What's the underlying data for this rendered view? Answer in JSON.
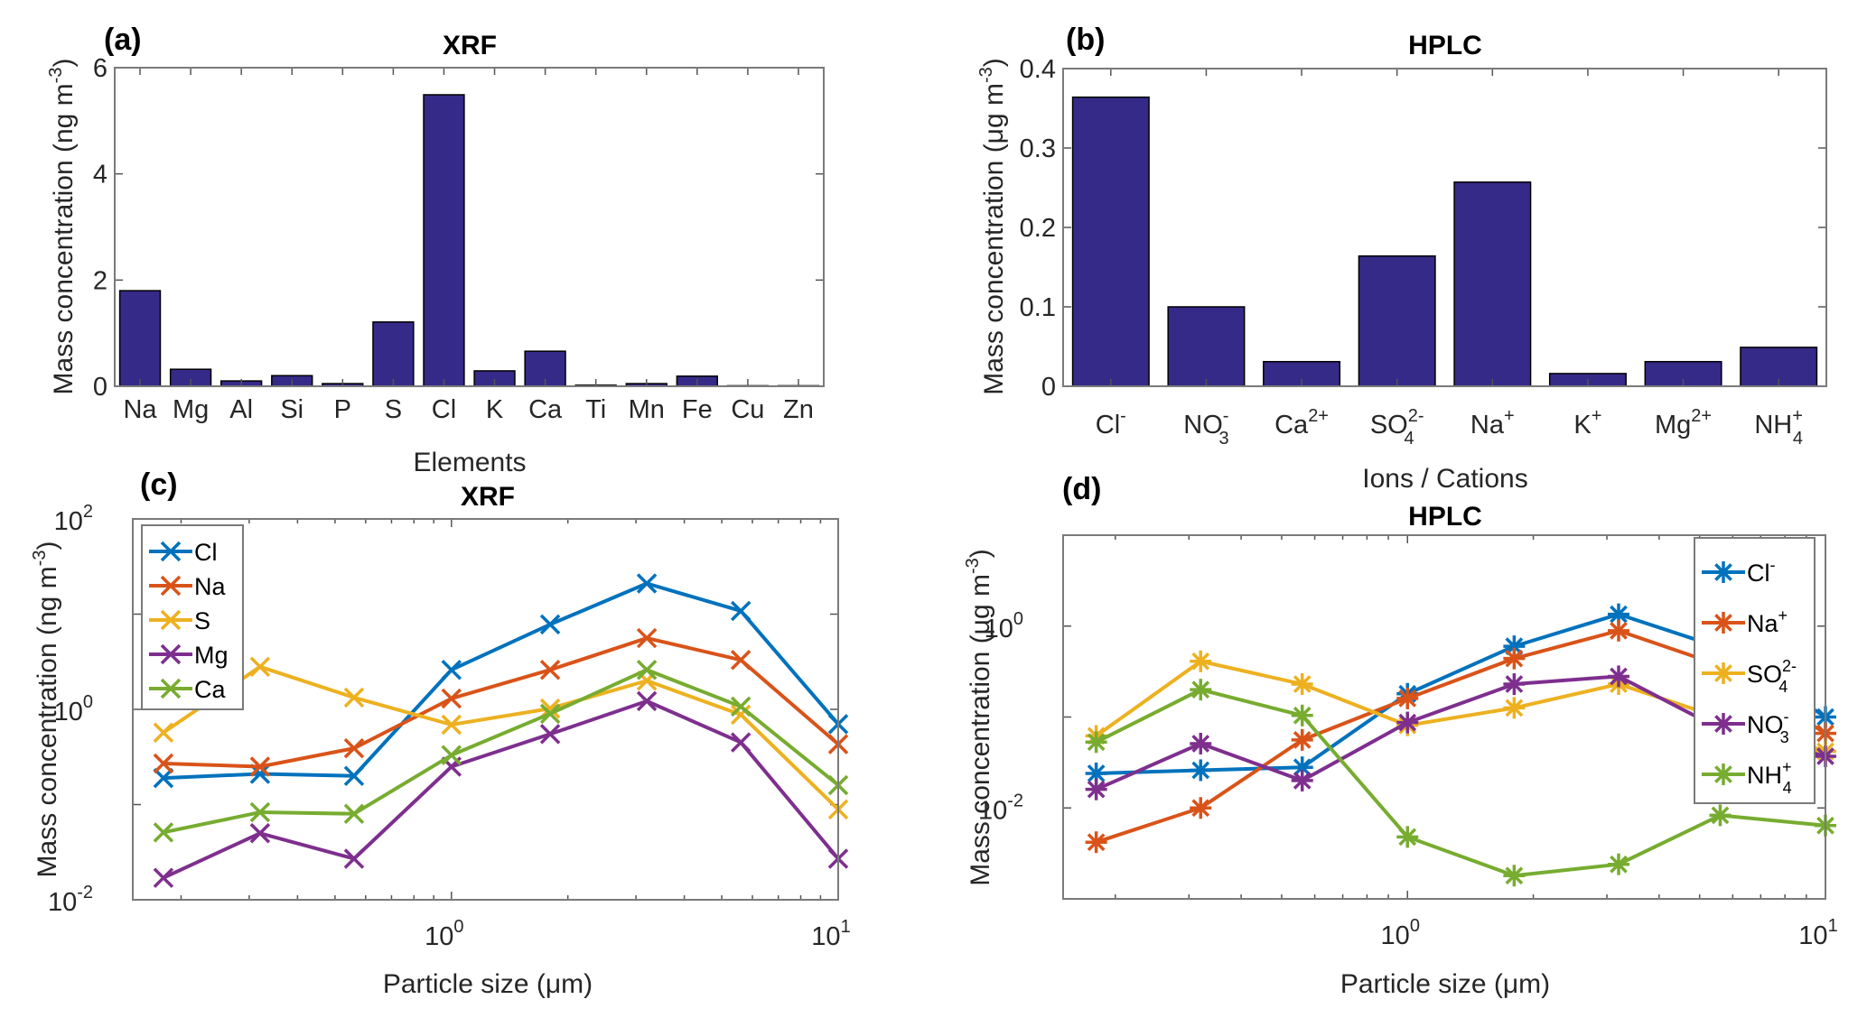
{
  "figure": {
    "background": "#ffffff"
  },
  "chart_data": [
    {
      "id": "a",
      "panel_label": "(a)",
      "type": "bar",
      "title": "XRF",
      "xlabel": "Elements",
      "ylabel": "Mass concentration (ng m",
      "ylabel_sup": "-3",
      "ylabel_tail": ")",
      "categories": [
        "Na",
        "Mg",
        "Al",
        "Si",
        "P",
        "S",
        "Cl",
        "K",
        "Ca",
        "Ti",
        "Mn",
        "Fe",
        "Cu",
        "Zn"
      ],
      "category_labels": [
        {
          "base": "Na"
        },
        {
          "base": "Mg"
        },
        {
          "base": "Al"
        },
        {
          "base": "Si"
        },
        {
          "base": "P"
        },
        {
          "base": "S"
        },
        {
          "base": "Cl"
        },
        {
          "base": "K"
        },
        {
          "base": "Ca"
        },
        {
          "base": "Ti"
        },
        {
          "base": "Mn"
        },
        {
          "base": "Fe"
        },
        {
          "base": "Cu"
        },
        {
          "base": "Zn"
        }
      ],
      "values": [
        1.8,
        0.32,
        0.1,
        0.2,
        0.05,
        1.21,
        5.49,
        0.29,
        0.66,
        0.02,
        0.05,
        0.19,
        0.01,
        0.01
      ],
      "ylim": [
        0,
        6
      ],
      "yticks": [
        0,
        2,
        4,
        6
      ],
      "ytick_labels": [
        "0",
        "2",
        "4",
        "6"
      ],
      "yscale": "linear",
      "grid": false,
      "bar_color": "#352a87"
    },
    {
      "id": "b",
      "panel_label": "(b)",
      "type": "bar",
      "title": "HPLC",
      "xlabel": "Ions / Cations",
      "ylabel": "Mass concentration (μg m",
      "ylabel_sup": "-3",
      "ylabel_tail": ")",
      "categories": [
        "Cl-",
        "NO3-",
        "Ca2+",
        "SO42-",
        "Na+",
        "K+",
        "Mg2+",
        "NH4+"
      ],
      "category_labels": [
        {
          "base": "Cl",
          "sup": "-"
        },
        {
          "base": "NO",
          "sup": "-",
          "sub": "3"
        },
        {
          "base": "Ca",
          "sup": "2+"
        },
        {
          "base": "SO",
          "sup": "2-",
          "sub": "4"
        },
        {
          "base": "Na",
          "sup": "+"
        },
        {
          "base": "K",
          "sup": "+"
        },
        {
          "base": "Mg",
          "sup": "2+"
        },
        {
          "base": "NH",
          "sup": "+",
          "sub": "4"
        }
      ],
      "values": [
        0.364,
        0.1,
        0.031,
        0.164,
        0.257,
        0.016,
        0.031,
        0.049
      ],
      "ylim": [
        0,
        0.4
      ],
      "yticks": [
        0,
        0.1,
        0.2,
        0.3,
        0.4
      ],
      "ytick_labels": [
        "0",
        "0.1",
        "0.2",
        "0.3",
        "0.4"
      ],
      "yscale": "linear",
      "grid": false,
      "bar_color": "#352a87"
    },
    {
      "id": "c",
      "panel_label": "(c)",
      "type": "line",
      "title": "XRF",
      "xlabel": "Particle size (μm)",
      "ylabel": "Mass concentration (ng m",
      "ylabel_sup": "-3",
      "ylabel_tail": ")",
      "xscale": "log",
      "yscale": "log",
      "xlim": [
        0.15,
        10
      ],
      "ylim": [
        0.01,
        100
      ],
      "xticks": [
        1,
        10
      ],
      "xtick_labels": [
        {
          "base": "10",
          "sup": "0"
        },
        {
          "base": "10",
          "sup": "1"
        }
      ],
      "yticks": [
        0.01,
        1,
        100
      ],
      "ytick_labels": [
        {
          "base": "10",
          "sup": "-2"
        },
        {
          "base": "10",
          "sup": "0"
        },
        {
          "base": "10",
          "sup": "2"
        }
      ],
      "marker": "x",
      "legend_position": "top-left",
      "grid": false,
      "x": [
        0.18,
        0.32,
        0.56,
        1.0,
        1.8,
        3.2,
        5.6,
        10
      ],
      "series": [
        {
          "name": "Cl",
          "label": {
            "base": "Cl"
          },
          "color": "#0072BD",
          "values": [
            0.19,
            0.21,
            0.2,
            2.6,
            7.8,
            21,
            10.8,
            0.7
          ]
        },
        {
          "name": "Na",
          "label": {
            "base": "Na"
          },
          "color": "#D95319",
          "values": [
            0.27,
            0.25,
            0.39,
            1.3,
            2.6,
            5.6,
            3.3,
            0.43
          ]
        },
        {
          "name": "S",
          "label": {
            "base": "S"
          },
          "color": "#EDB120",
          "values": [
            0.57,
            2.8,
            1.33,
            0.69,
            1.02,
            2.0,
            0.88,
            0.089
          ]
        },
        {
          "name": "Mg",
          "label": {
            "base": "Mg"
          },
          "color": "#7E2F8E",
          "values": [
            0.017,
            0.05,
            0.027,
            0.25,
            0.55,
            1.22,
            0.45,
            0.027
          ]
        },
        {
          "name": "Ca",
          "label": {
            "base": "Ca"
          },
          "color": "#77AC30",
          "values": [
            0.051,
            0.083,
            0.08,
            0.33,
            0.9,
            2.6,
            1.07,
            0.16
          ]
        }
      ]
    },
    {
      "id": "d",
      "panel_label": "(d)",
      "type": "line",
      "title": "HPLC",
      "xlabel": "Particle size (μm)",
      "ylabel": "Mass concentration (μg m",
      "ylabel_sup": "-3",
      "ylabel_tail": ")",
      "xscale": "log",
      "yscale": "log",
      "xlim": [
        0.15,
        10
      ],
      "ylim": [
        0.001,
        10
      ],
      "xticks": [
        1,
        10
      ],
      "xtick_labels": [
        {
          "base": "10",
          "sup": "0"
        },
        {
          "base": "10",
          "sup": "1"
        }
      ],
      "yticks": [
        0.01,
        1
      ],
      "ytick_labels": [
        {
          "base": "10",
          "sup": "-2"
        },
        {
          "base": "10",
          "sup": "0"
        }
      ],
      "marker": "asterisk",
      "legend_position": "top-right",
      "grid": false,
      "x": [
        0.18,
        0.32,
        0.56,
        1.0,
        1.8,
        3.2,
        5.6,
        10
      ],
      "series": [
        {
          "name": "Cl-",
          "label": {
            "base": "Cl",
            "sup": "-"
          },
          "color": "#0072BD",
          "values": [
            0.024,
            0.026,
            0.028,
            0.18,
            0.6,
            1.35,
            0.58,
            0.1
          ]
        },
        {
          "name": "Na+",
          "label": {
            "base": "Na",
            "sup": "+"
          },
          "color": "#D95319",
          "values": [
            0.0042,
            0.01,
            0.056,
            0.16,
            0.44,
            0.89,
            0.37,
            0.066
          ]
        },
        {
          "name": "SO42-",
          "label": {
            "base": "SO",
            "sup": "2-",
            "sub": "4"
          },
          "color": "#EDB120",
          "values": [
            0.062,
            0.41,
            0.23,
            0.081,
            0.126,
            0.23,
            0.098,
            0.042
          ]
        },
        {
          "name": "NO3-",
          "label": {
            "base": "NO",
            "sup": "-",
            "sub": "3"
          },
          "color": "#7E2F8E",
          "values": [
            0.016,
            0.051,
            0.02,
            0.087,
            0.23,
            0.28,
            0.074,
            0.037
          ]
        },
        {
          "name": "NH4+",
          "label": {
            "base": "NH",
            "sup": "+",
            "sub": "4"
          },
          "color": "#77AC30",
          "values": [
            0.053,
            0.2,
            0.104,
            0.0048,
            0.0018,
            0.0024,
            0.0083,
            0.0064
          ]
        }
      ]
    }
  ]
}
